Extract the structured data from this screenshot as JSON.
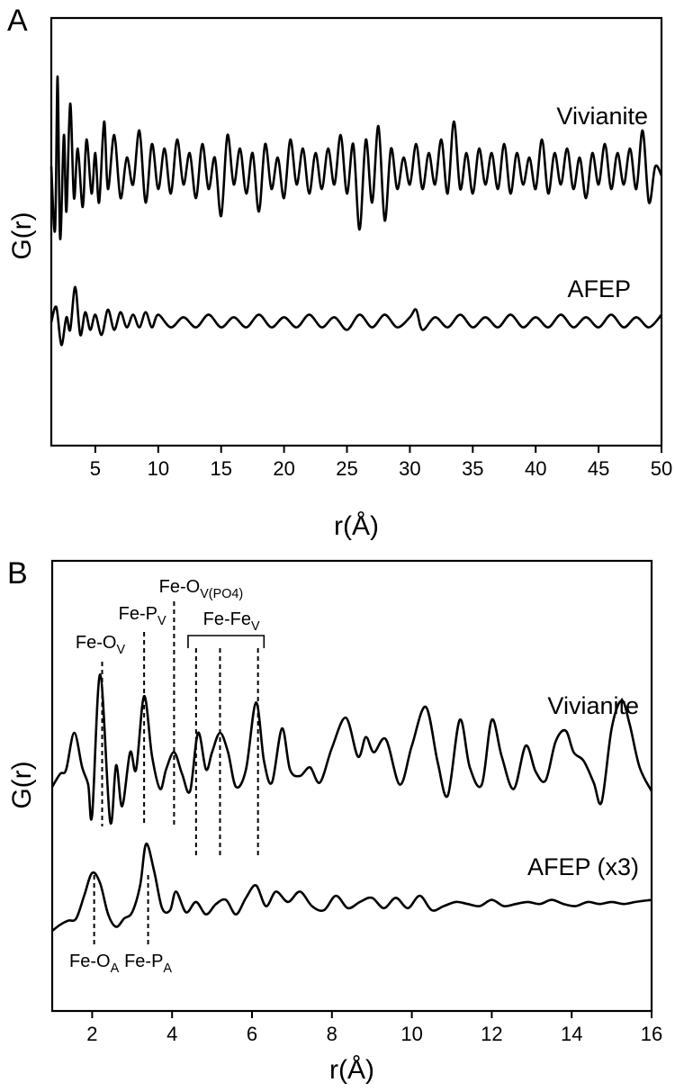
{
  "panels": {
    "a": {
      "letter": "A",
      "ylabel": "G(r)",
      "xlabel": "r(Å)"
    },
    "b": {
      "letter": "B",
      "ylabel": "G(r)",
      "xlabel": "r(Å)"
    }
  },
  "chart_data": [
    {
      "type": "line",
      "title": "",
      "xlabel": "r(Å)",
      "ylabel": "G(r)",
      "xlim": [
        1.5,
        50
      ],
      "xticks": [
        "5",
        "10",
        "15",
        "20",
        "25",
        "30",
        "35",
        "40",
        "45",
        "50"
      ],
      "xtick_values": [
        5,
        10,
        15,
        20,
        25,
        30,
        35,
        40,
        45,
        50
      ],
      "yticks_labeled": false,
      "grid": false,
      "series": [
        {
          "name": "Vivianite",
          "amplitude": 1.0,
          "x": [
            1.5,
            1.8,
            2.0,
            2.2,
            2.5,
            2.7,
            3.0,
            3.3,
            3.6,
            4.0,
            4.3,
            4.7,
            5.0,
            5.3,
            5.7,
            6.0,
            6.5,
            7.0,
            7.5,
            8.0,
            8.5,
            9.0,
            9.5,
            10.0,
            10.5,
            11.0,
            11.5,
            12.0,
            12.5,
            13.0,
            13.5,
            14.0,
            14.5,
            15.0,
            15.5,
            16.0,
            16.5,
            17.0,
            17.5,
            18.0,
            18.5,
            19.0,
            19.5,
            20.0,
            20.5,
            21.0,
            21.5,
            22.0,
            22.5,
            23.0,
            23.5,
            24.0,
            24.5,
            25.0,
            25.5,
            26.0,
            26.5,
            27.0,
            27.5,
            28.0,
            28.5,
            29.0,
            29.5,
            30.0,
            30.5,
            31.0,
            31.5,
            32.0,
            32.5,
            33.0,
            33.5,
            34.0,
            34.5,
            35.0,
            35.5,
            36.0,
            36.5,
            37.0,
            37.5,
            38.0,
            38.5,
            39.0,
            39.5,
            40.0,
            40.5,
            41.0,
            41.5,
            42.0,
            42.5,
            43.0,
            43.5,
            44.0,
            44.5,
            45.0,
            45.5,
            46.0,
            46.5,
            47.0,
            47.5,
            48.0,
            48.5,
            49.0,
            49.5,
            50.0
          ],
          "y": [
            0.2,
            -1.2,
            2.2,
            -1.4,
            0.9,
            -0.8,
            1.6,
            -0.5,
            0.6,
            -0.7,
            0.8,
            -0.4,
            0.5,
            -0.6,
            1.2,
            -0.3,
            0.9,
            -0.5,
            0.4,
            -0.2,
            1.0,
            -0.6,
            0.7,
            -0.3,
            0.6,
            -0.4,
            0.8,
            -0.2,
            0.5,
            -0.5,
            0.7,
            -0.3,
            0.4,
            -0.9,
            0.9,
            -0.2,
            0.6,
            -0.4,
            0.5,
            -0.8,
            0.7,
            -0.3,
            0.4,
            -0.5,
            0.8,
            -0.2,
            0.6,
            -0.4,
            0.5,
            -0.3,
            0.6,
            -0.2,
            0.9,
            -0.4,
            0.7,
            -1.2,
            0.8,
            -0.6,
            1.1,
            -1.0,
            0.6,
            -0.3,
            0.4,
            -0.2,
            0.7,
            -0.3,
            0.5,
            -0.2,
            0.8,
            -0.4,
            1.2,
            -0.3,
            0.5,
            -0.4,
            0.6,
            -0.2,
            0.5,
            -0.3,
            0.7,
            -0.4,
            0.5,
            -0.2,
            0.4,
            -0.3,
            0.8,
            -0.4,
            0.5,
            -0.2,
            0.6,
            -0.3,
            0.4,
            -0.5,
            0.5,
            -0.2,
            0.7,
            -0.3,
            0.5,
            -0.2,
            0.6,
            -0.3,
            1.0,
            -0.6,
            0.2,
            0.0
          ]
        },
        {
          "name": "AFEP",
          "amplitude": 0.3,
          "x": [
            1.5,
            1.9,
            2.3,
            2.7,
            3.0,
            3.4,
            3.8,
            4.2,
            4.6,
            5.0,
            5.5,
            6.0,
            6.5,
            7.0,
            7.5,
            8.0,
            8.5,
            9.0,
            9.5,
            10.0,
            11.0,
            12.0,
            13.0,
            14.0,
            15.0,
            16.0,
            17.0,
            18.0,
            19.0,
            20.0,
            21.0,
            22.0,
            23.0,
            24.0,
            25.0,
            26.0,
            27.0,
            28.0,
            29.0,
            30.0,
            30.5,
            31.0,
            32.0,
            33.0,
            34.0,
            35.0,
            36.0,
            37.0,
            38.0,
            39.0,
            40.0,
            41.0,
            42.0,
            43.0,
            44.0,
            45.0,
            46.0,
            47.0,
            48.0,
            49.0,
            50.0
          ],
          "y": [
            0.0,
            0.6,
            -0.9,
            0.2,
            -0.3,
            1.4,
            -0.5,
            0.4,
            -0.3,
            0.3,
            -0.5,
            0.5,
            -0.3,
            0.4,
            -0.2,
            0.3,
            -0.2,
            0.4,
            -0.2,
            0.3,
            -0.2,
            0.2,
            -0.2,
            0.3,
            -0.2,
            0.2,
            -0.2,
            0.3,
            -0.2,
            0.2,
            -0.2,
            0.3,
            -0.2,
            0.2,
            -0.3,
            0.3,
            -0.2,
            0.3,
            -0.2,
            0.2,
            0.5,
            -0.3,
            0.2,
            -0.2,
            0.3,
            -0.2,
            0.2,
            -0.2,
            0.3,
            -0.2,
            0.2,
            -0.2,
            0.3,
            -0.2,
            0.2,
            -0.2,
            0.3,
            -0.2,
            0.2,
            -0.2,
            0.3
          ]
        }
      ]
    },
    {
      "type": "line",
      "title": "",
      "xlabel": "r(Å)",
      "ylabel": "G(r)",
      "xlim": [
        1,
        16
      ],
      "xticks": [
        "2",
        "4",
        "6",
        "8",
        "10",
        "12",
        "14",
        "16"
      ],
      "xtick_values": [
        2,
        4,
        6,
        8,
        10,
        12,
        14,
        16
      ],
      "yticks_labeled": false,
      "grid": false,
      "series": [
        {
          "name": "Vivianite",
          "x": [
            1.0,
            1.2,
            1.35,
            1.55,
            1.75,
            1.9,
            2.0,
            2.2,
            2.45,
            2.6,
            2.75,
            2.95,
            3.1,
            3.3,
            3.5,
            3.7,
            3.85,
            4.05,
            4.25,
            4.45,
            4.65,
            4.85,
            5.0,
            5.2,
            5.4,
            5.6,
            5.85,
            6.1,
            6.3,
            6.5,
            6.75,
            6.95,
            7.2,
            7.45,
            7.7,
            8.0,
            8.35,
            8.65,
            8.85,
            9.05,
            9.35,
            9.7,
            10.0,
            10.35,
            10.65,
            10.9,
            11.2,
            11.45,
            11.75,
            12.0,
            12.25,
            12.55,
            12.85,
            13.1,
            13.35,
            13.6,
            13.85,
            14.05,
            14.3,
            14.55,
            14.75,
            15.0,
            15.25,
            15.45,
            15.7,
            16.0
          ],
          "y": [
            -0.25,
            0.05,
            0.15,
            1.0,
            0.2,
            -0.2,
            -0.9,
            2.35,
            -1.05,
            0.25,
            -0.7,
            0.55,
            0.15,
            1.85,
            0.45,
            -0.3,
            0.15,
            0.55,
            0.05,
            -0.35,
            1.0,
            0.15,
            0.55,
            1.0,
            0.55,
            -0.25,
            0.15,
            1.7,
            0.35,
            -0.15,
            1.1,
            0.15,
            0.0,
            0.2,
            -0.15,
            0.65,
            1.35,
            0.45,
            0.9,
            0.55,
            0.85,
            -0.2,
            0.7,
            1.6,
            0.3,
            -0.45,
            1.3,
            0.2,
            -0.2,
            1.3,
            0.45,
            -0.3,
            0.7,
            0.1,
            -0.1,
            0.8,
            1.05,
            0.55,
            0.35,
            -0.15,
            -0.6,
            1.1,
            1.75,
            1.2,
            0.2,
            -0.35
          ]
        },
        {
          "name": "AFEP (x3)",
          "x": [
            1.0,
            1.2,
            1.4,
            1.6,
            1.8,
            2.0,
            2.2,
            2.4,
            2.6,
            2.8,
            3.0,
            3.2,
            3.35,
            3.55,
            3.75,
            3.95,
            4.1,
            4.35,
            4.6,
            4.85,
            5.1,
            5.35,
            5.6,
            5.85,
            6.1,
            6.35,
            6.6,
            6.9,
            7.2,
            7.5,
            7.8,
            8.1,
            8.4,
            8.7,
            9.0,
            9.3,
            9.6,
            9.9,
            10.2,
            10.5,
            10.8,
            11.1,
            11.4,
            11.7,
            12.0,
            12.3,
            12.6,
            12.9,
            13.2,
            13.5,
            13.8,
            14.1,
            14.4,
            14.7,
            15.0,
            15.3,
            15.6,
            16.0
          ],
          "y": [
            -0.85,
            -0.7,
            -0.6,
            -0.55,
            0.0,
            0.55,
            0.3,
            -0.45,
            -0.75,
            -0.55,
            -0.4,
            0.25,
            1.25,
            0.6,
            -0.3,
            -0.35,
            0.1,
            -0.4,
            -0.15,
            -0.45,
            -0.2,
            -0.1,
            -0.45,
            -0.05,
            0.25,
            -0.25,
            0.1,
            -0.15,
            0.1,
            -0.25,
            -0.35,
            0.0,
            -0.3,
            -0.15,
            -0.05,
            -0.3,
            -0.05,
            -0.3,
            0.0,
            -0.35,
            -0.25,
            -0.15,
            -0.2,
            -0.25,
            -0.1,
            -0.25,
            -0.2,
            -0.15,
            -0.2,
            -0.1,
            -0.2,
            -0.25,
            -0.15,
            -0.2,
            -0.15,
            -0.2,
            -0.15,
            -0.1
          ]
        }
      ],
      "annotations": {
        "vivianite_lines": [
          {
            "label": "Fe-O",
            "subscript": "V",
            "x": 2.25
          },
          {
            "label": "Fe-P",
            "subscript": "V",
            "x": 3.3
          },
          {
            "label": "Fe-O",
            "subscript": "V(PO4)",
            "x": 4.05
          }
        ],
        "fe_fe_bracket": {
          "label": "Fe-Fe",
          "subscript": "V",
          "x_start": 4.4,
          "x_end": 6.3,
          "lines_x": [
            4.6,
            5.2,
            6.15
          ]
        },
        "afep_lines": [
          {
            "label": "Fe-O",
            "subscript": "A",
            "x": 2.05
          },
          {
            "label": "Fe-P",
            "subscript": "A",
            "x": 3.4
          }
        ]
      }
    }
  ]
}
